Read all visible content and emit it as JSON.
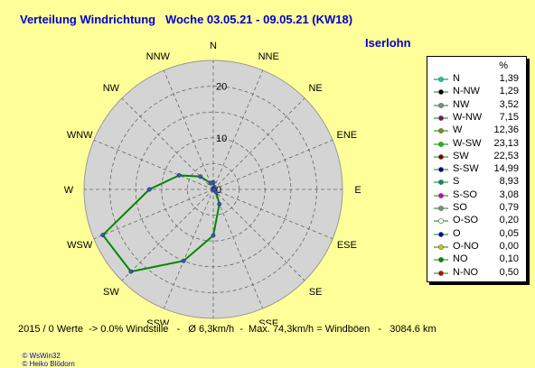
{
  "title": "Verteilung Windrichtung   Woche 03.05.21 - 09.05.21 (KW18)",
  "station": "Iserlohn",
  "chart_data": {
    "type": "radar",
    "directions": [
      "N",
      "NNE",
      "NE",
      "ENE",
      "E",
      "ESE",
      "SE",
      "SSE",
      "S",
      "SSW",
      "SW",
      "WSW",
      "W",
      "WNW",
      "NW",
      "NNW"
    ],
    "radial_ticks": [
      "0",
      "10",
      "20"
    ],
    "rmax": 25,
    "series": [
      {
        "values": [
          1.39,
          0.5,
          0.1,
          0.0,
          0.05,
          0.2,
          0.79,
          3.08,
          8.93,
          14.99,
          22.53,
          23.13,
          12.36,
          7.15,
          3.52,
          1.29
        ],
        "color": "#008800"
      }
    ],
    "grid": true,
    "background": "#d4d4d4"
  },
  "legend": {
    "header": "%",
    "items": [
      {
        "name": "N",
        "value": "1,39",
        "color": "#00cccc"
      },
      {
        "name": "N-NW",
        "value": "1,29",
        "color": "#000000"
      },
      {
        "name": "NW",
        "value": "3,52",
        "color": "#888888"
      },
      {
        "name": "W-NW",
        "value": "7,15",
        "color": "#880088"
      },
      {
        "name": "W",
        "value": "12,36",
        "color": "#888800"
      },
      {
        "name": "W-SW",
        "value": "23,13",
        "color": "#00cc00"
      },
      {
        "name": "SW",
        "value": "22,53",
        "color": "#880000"
      },
      {
        "name": "S-SW",
        "value": "14,99",
        "color": "#000088"
      },
      {
        "name": "S",
        "value": "8,93",
        "color": "#008888"
      },
      {
        "name": "S-SO",
        "value": "3,08",
        "color": "#cc00cc"
      },
      {
        "name": "SO",
        "value": "0,79",
        "color": "#888888"
      },
      {
        "name": "O-SO",
        "value": "0,20",
        "color": "#ffffff"
      },
      {
        "name": "O",
        "value": "0,05",
        "color": "#0000cc"
      },
      {
        "name": "O-NO",
        "value": "0,00",
        "color": "#cccc00"
      },
      {
        "name": "NO",
        "value": "0,10",
        "color": "#008800"
      },
      {
        "name": "N-NO",
        "value": "0,50",
        "color": "#cc0000"
      }
    ]
  },
  "footer": "2015 / 0 Werte  -> 0.0% Windstille   -   Ø 6,3km/h  -  Max. 74,3km/h = Windböen   -   3084.6 km",
  "credits": [
    "© WsWin32",
    "© Heiko Blödorn"
  ]
}
